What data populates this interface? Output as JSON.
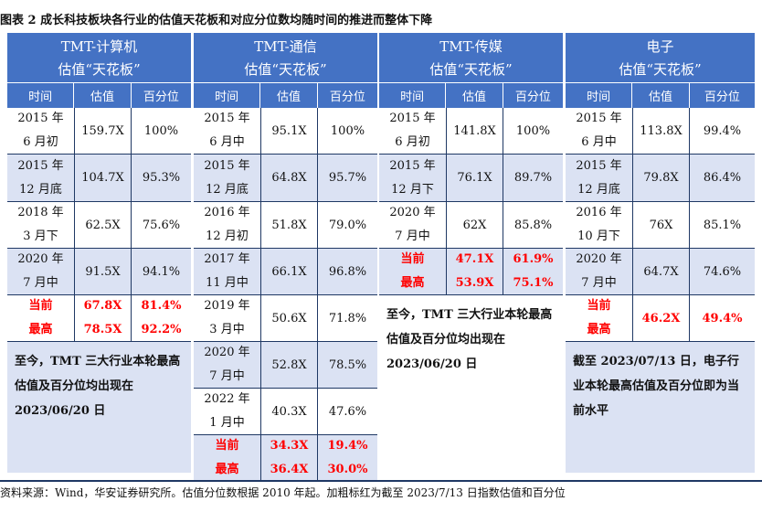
{
  "title": "图表 2  成长科技板块各行业的估值天花板和对应分位数均随时间的推进而整体下降",
  "source": "资料来源：Wind，华安证券研究所。估值分位数根据 2010 年起。加粗标红为截至 2023/7/13 日指数估值和百分位",
  "col_headers": {
    "time": "时间",
    "val": "估值",
    "pct": "百分位"
  },
  "panels": [
    {
      "name": "TMT-计算机",
      "sub": "估值“天花板”",
      "rows": [
        {
          "t1": "2015 年",
          "t2": "6 月初",
          "v": "159.7X",
          "p": "100%",
          "shade": false
        },
        {
          "t1": "2015 年",
          "t2": "12 月底",
          "v": "104.7X",
          "p": "95.3%",
          "shade": true
        },
        {
          "t1": "2018 年",
          "t2": "3 月下",
          "v": "62.5X",
          "p": "75.6%",
          "shade": false
        },
        {
          "t1": "2020 年",
          "t2": "7 月中",
          "v": "91.5X",
          "p": "94.1%",
          "shade": true
        }
      ],
      "current": {
        "t1": "当前",
        "t2": "最高",
        "v1": "67.8X",
        "v2": "78.5X",
        "p1": "81.4%",
        "p2": "92.2%"
      },
      "note": "至今，TMT 三大行业本轮最高估值及百分位均出现在 2023/06/20 日"
    },
    {
      "name": "TMT-通信",
      "sub": "估值“天花板”",
      "rows": [
        {
          "t1": "2015 年",
          "t2": "6 月中",
          "v": "95.1X",
          "p": "100%",
          "shade": false
        },
        {
          "t1": "2015 年",
          "t2": "12 月底",
          "v": "64.8X",
          "p": "95.7%",
          "shade": true
        },
        {
          "t1": "2016 年",
          "t2": "12 月初",
          "v": "51.8X",
          "p": "79.0%",
          "shade": false
        },
        {
          "t1": "2017 年",
          "t2": "11 月中",
          "v": "66.1X",
          "p": "96.8%",
          "shade": true
        },
        {
          "t1": "2019 年",
          "t2": "3 月中",
          "v": "50.6X",
          "p": "71.8%",
          "shade": false
        },
        {
          "t1": "2020 年",
          "t2": "7 月中",
          "v": "52.8X",
          "p": "78.5%",
          "shade": true
        },
        {
          "t1": "2022 年",
          "t2": "1 月中",
          "v": "40.3X",
          "p": "47.6%",
          "shade": false
        }
      ],
      "current": {
        "t1": "当前",
        "t2": "最高",
        "v1": "34.3X",
        "v2": "36.4X",
        "p1": "19.4%",
        "p2": "30.0%"
      }
    },
    {
      "name": "TMT-传媒",
      "sub": "估值“天花板”",
      "rows": [
        {
          "t1": "2015 年",
          "t2": "6 月初",
          "v": "141.8X",
          "p": "100%",
          "shade": false
        },
        {
          "t1": "2015 年",
          "t2": "12 月下",
          "v": "76.1X",
          "p": "89.7%",
          "shade": true
        },
        {
          "t1": "2020 年",
          "t2": "7 月中",
          "v": "62X",
          "p": "85.8%",
          "shade": false
        }
      ],
      "current": {
        "t1": "当前",
        "t2": "最高",
        "v1": "47.1X",
        "v2": "53.9X",
        "p1": "61.9%",
        "p2": "75.1%"
      },
      "note": "至今，TMT 三大行业本轮最高估值及百分位均出现在 2023/06/20 日"
    },
    {
      "name": "电子",
      "sub": "估值“天花板”",
      "rows": [
        {
          "t1": "2015 年",
          "t2": "6 月中",
          "v": "113.8X",
          "p": "99.4%",
          "shade": false
        },
        {
          "t1": "2015 年",
          "t2": "12 月底",
          "v": "79.8X",
          "p": "86.4%",
          "shade": true
        },
        {
          "t1": "2016 年",
          "t2": "10 月下",
          "v": "76X",
          "p": "85.1%",
          "shade": false
        },
        {
          "t1": "2020 年",
          "t2": "7 月中",
          "v": "64.7X",
          "p": "74.6%",
          "shade": true
        }
      ],
      "current": {
        "t1": "当前",
        "t2": "最高",
        "v1": "46.2X",
        "p1": "49.4%"
      },
      "note": "截至 2023/07/13 日，电子行业本轮最高估值及百分位即为当前水平"
    }
  ]
}
